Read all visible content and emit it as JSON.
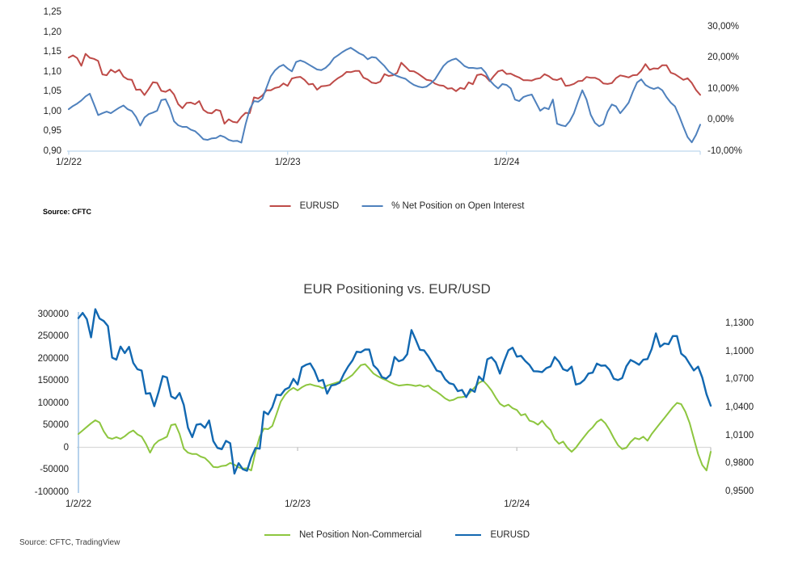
{
  "page": {
    "background": "#ffffff"
  },
  "top_chart": {
    "source": "Source: CFTC",
    "left_ticks": [
      "1,25",
      "1,20",
      "1,15",
      "1,10",
      "1,05",
      "1,00",
      "0,95",
      "0,90"
    ],
    "right_ticks": [
      "30,00%",
      "20,00%",
      "10,00%",
      "0,00%",
      "-10,00%"
    ],
    "x_ticks": [
      "1/2/22",
      "1/2/23",
      "1/2/24"
    ],
    "legend": [
      {
        "label": "EURUSD",
        "color": "#BE4B48"
      },
      {
        "label": "% Net Position on Open Interest",
        "color": "#4F81BD"
      }
    ],
    "axis_line_color": "#BDD7EE"
  },
  "bottom_chart": {
    "title": "EUR Positioning vs. EUR/USD",
    "source": "Source: CFTC, TradingView",
    "left_ticks": [
      "300000",
      "250000",
      "200000",
      "150000",
      "100000",
      "50000",
      "0",
      "-50000",
      "-100000"
    ],
    "right_ticks": [
      "1,1300",
      "1,1000",
      "1,0700",
      "1,0400",
      "1,0100",
      "0,9800",
      "0,9500"
    ],
    "x_ticks": [
      "1/2/22",
      "1/2/23",
      "1/2/24"
    ],
    "legend": [
      {
        "label": "Net Position Non-Commercial",
        "color": "#8DC63F"
      },
      {
        "label": "EURUSD",
        "color": "#1268B1"
      }
    ],
    "zero_line_color": "#D9D9D9",
    "axis_line_color": "#9DC3E6"
  },
  "chart_data": [
    {
      "type": "line",
      "title": "",
      "x_unit": "weekly observations starting 1/2/22",
      "x_tick_weeks": [
        0,
        52,
        104
      ],
      "x_tick_labels": [
        "1/2/22",
        "1/2/23",
        "1/2/24"
      ],
      "left_axis": {
        "min": 0.9,
        "max": 1.25,
        "step": 0.05,
        "format": "comma-decimal"
      },
      "right_axis": {
        "min": -10,
        "max": 30,
        "step": 10,
        "format": "percent comma-decimal"
      },
      "legend_position": "bottom center",
      "grid": "bottom axis line only",
      "series": [
        {
          "name": "EURUSD",
          "axis": "left",
          "color": "#BE4B48",
          "values": [
            1.1355,
            1.1411,
            1.1344,
            1.1149,
            1.1451,
            1.1351,
            1.1324,
            1.127,
            1.0932,
            1.0911,
            1.1051,
            1.0981,
            1.1047,
            1.0876,
            1.0808,
            1.0794,
            1.0545,
            1.0552,
            1.0412,
            1.0563,
            1.0734,
            1.072,
            1.0518,
            1.0493,
            1.0553,
            1.0426,
            1.0182,
            1.0081,
            1.0213,
            1.0222,
            1.0181,
            1.0259,
            1.0039,
            0.9966,
            0.9952,
            1.0041,
            1.0016,
            0.969,
            0.9802,
            0.9737,
            0.9721,
            0.9861,
            0.9965,
            0.9957,
            1.0354,
            1.0325,
            1.0402,
            1.0535,
            1.053,
            1.059,
            1.0613,
            1.0705,
            1.0644,
            1.083,
            1.0855,
            1.087,
            1.0794,
            1.0679,
            1.0694,
            1.0546,
            1.0634,
            1.0643,
            1.0665,
            1.076,
            1.0839,
            1.0901,
            1.0995,
            1.0989,
            1.1019,
            1.1019,
            1.085,
            1.0805,
            1.0724,
            1.0707,
            1.0749,
            1.0939,
            1.0893,
            1.091,
            1.0968,
            1.1227,
            1.1125,
            1.1016,
            1.1009,
            1.0947,
            1.0872,
            1.0794,
            1.0779,
            1.07,
            1.0658,
            1.0646,
            1.0573,
            1.0586,
            1.0509,
            1.0594,
            1.0565,
            1.0731,
            1.0685,
            1.0914,
            1.0936,
            1.0882,
            1.0761,
            1.0895,
            1.1011,
            1.1039,
            1.0943,
            1.0951,
            1.0897,
            1.0854,
            1.0787,
            1.0784,
            1.0777,
            1.082,
            1.0838,
            1.0938,
            1.0889,
            1.0808,
            1.079,
            1.0836,
            1.0644,
            1.0656,
            1.0693,
            1.0762,
            1.0771,
            1.0868,
            1.0846,
            1.0848,
            1.0801,
            1.0706,
            1.0692,
            1.0713,
            1.084,
            1.0907,
            1.0884,
            1.0856,
            1.091,
            1.0917,
            1.1025,
            1.1192,
            1.1048,
            1.1084,
            1.1076,
            1.1163,
            1.1163,
            1.0975,
            1.0937,
            1.0866,
            1.0795,
            1.0836,
            1.0718,
            1.054,
            1.0417
          ]
        },
        {
          "name": "% Net Position on Open Interest",
          "axis": "right",
          "color": "#4F81BD",
          "values": [
            3.4,
            4.4,
            5.2,
            6.2,
            7.5,
            8.4,
            5.0,
            1.5,
            2.1,
            2.6,
            2.1,
            3.0,
            3.9,
            4.6,
            3.4,
            2.8,
            0.9,
            -1.9,
            0.7,
            1.8,
            2.3,
            2.9,
            6.3,
            6.6,
            3.7,
            -0.5,
            -1.8,
            -2.3,
            -2.3,
            -3.2,
            -3.7,
            -4.9,
            -6.3,
            -6.5,
            -6.0,
            -5.9,
            -5.1,
            -5.6,
            -6.5,
            -6.9,
            -6.8,
            -7.4,
            -1.5,
            3.4,
            6.0,
            5.8,
            6.8,
            10.4,
            14.0,
            15.9,
            17.1,
            17.7,
            16.5,
            15.6,
            18.6,
            19.1,
            18.6,
            17.8,
            17.0,
            16.2,
            16.0,
            16.7,
            18.0,
            19.9,
            20.8,
            21.8,
            22.6,
            23.2,
            22.3,
            21.4,
            20.8,
            19.5,
            20.2,
            20.0,
            18.6,
            17.3,
            15.6,
            14.7,
            14.1,
            13.6,
            13.2,
            12.1,
            11.2,
            10.7,
            10.4,
            10.7,
            11.7,
            13.0,
            15.2,
            17.3,
            18.6,
            19.3,
            19.7,
            18.6,
            17.3,
            16.7,
            16.7,
            16.5,
            16.7,
            15.2,
            12.7,
            11.2,
            10.1,
            11.5,
            11.2,
            10.1,
            6.5,
            6.0,
            7.3,
            7.8,
            8.1,
            5.5,
            2.9,
            3.9,
            3.4,
            6.5,
            -1.3,
            -1.8,
            -2.1,
            -0.5,
            2.1,
            6.0,
            9.5,
            6.5,
            1.6,
            -1.0,
            -2.1,
            -1.4,
            2.6,
            4.9,
            4.3,
            2.1,
            3.7,
            5.5,
            9.0,
            12.0,
            13.0,
            11.2,
            10.4,
            9.9,
            10.4,
            9.5,
            7.3,
            5.5,
            4.3,
            1.2,
            -2.3,
            -5.6,
            -7.3,
            -4.9,
            -1.6
          ]
        }
      ]
    },
    {
      "type": "line",
      "title": "EUR Positioning vs. EUR/USD",
      "x_unit": "weekly observations starting 1/2/22",
      "x_tick_weeks": [
        0,
        52,
        104
      ],
      "x_tick_labels": [
        "1/2/22",
        "1/2/23",
        "1/2/24"
      ],
      "left_axis": {
        "min": -100000,
        "max": 300000,
        "step": 50000
      },
      "right_axis": {
        "min": 0.95,
        "max": 1.13,
        "step": 0.03,
        "format": "comma-decimal"
      },
      "legend_position": "bottom center",
      "grid": "zero line only",
      "series": [
        {
          "name": "Net Position Non-Commercial",
          "axis": "left",
          "color": "#8DC63F",
          "values": [
            30000,
            38000,
            46000,
            54000,
            61000,
            56000,
            36000,
            22000,
            19000,
            23000,
            19000,
            25000,
            33000,
            38000,
            29000,
            24000,
            8000,
            -12000,
            6000,
            15000,
            19000,
            24000,
            50000,
            52000,
            30000,
            -3000,
            -12000,
            -15000,
            -15000,
            -21000,
            -24000,
            -33000,
            -44000,
            -45000,
            -42000,
            -41000,
            -35000,
            -39000,
            -45000,
            -48000,
            -47000,
            -52000,
            -10000,
            24000,
            42000,
            41000,
            48000,
            75000,
            103000,
            118000,
            128000,
            134000,
            128000,
            135000,
            140000,
            142000,
            139000,
            137000,
            133000,
            139000,
            142000,
            145000,
            148000,
            150000,
            156000,
            163000,
            174000,
            185000,
            187000,
            177000,
            166000,
            160000,
            155000,
            151000,
            146000,
            142000,
            139000,
            140000,
            141000,
            140000,
            138000,
            140000,
            136000,
            139000,
            130000,
            125000,
            118000,
            110000,
            105000,
            107000,
            112000,
            113000,
            115000,
            125000,
            135000,
            145000,
            150000,
            140000,
            128000,
            112000,
            98000,
            92000,
            96000,
            88000,
            84000,
            72000,
            75000,
            60000,
            57000,
            51000,
            60000,
            48000,
            39000,
            18000,
            8000,
            13000,
            -1000,
            -10000,
            -1000,
            12000,
            24000,
            36000,
            45000,
            57000,
            63000,
            54000,
            39000,
            21000,
            5000,
            -4000,
            -1000,
            12000,
            21000,
            18000,
            24000,
            15000,
            30000,
            42000,
            54000,
            66000,
            78000,
            90000,
            100000,
            97000,
            80000,
            55000,
            20000,
            -15000,
            -40000,
            -52000,
            -10000
          ]
        },
        {
          "name": "EURUSD",
          "axis": "right",
          "color": "#1268B1",
          "values": [
            1.1355,
            1.1411,
            1.1344,
            1.1149,
            1.1451,
            1.1351,
            1.1324,
            1.127,
            1.0932,
            1.0911,
            1.1051,
            1.0981,
            1.1047,
            1.0876,
            1.0808,
            1.0794,
            1.0545,
            1.0552,
            1.0412,
            1.0563,
            1.0734,
            1.072,
            1.0518,
            1.0493,
            1.0553,
            1.0426,
            1.0182,
            1.0081,
            1.0213,
            1.0222,
            1.0181,
            1.0259,
            1.0039,
            0.9966,
            0.9952,
            1.0041,
            1.0016,
            0.969,
            0.9802,
            0.9737,
            0.9721,
            0.9861,
            0.9965,
            0.9957,
            1.0354,
            1.0325,
            1.0402,
            1.0535,
            1.053,
            1.059,
            1.0613,
            1.0705,
            1.0644,
            1.083,
            1.0855,
            1.087,
            1.0794,
            1.0679,
            1.0694,
            1.0546,
            1.0634,
            1.0643,
            1.0665,
            1.076,
            1.0839,
            1.0901,
            1.0995,
            1.0989,
            1.1019,
            1.1019,
            1.085,
            1.0805,
            1.0724,
            1.0707,
            1.0749,
            1.0939,
            1.0893,
            1.091,
            1.0968,
            1.1227,
            1.1125,
            1.1016,
            1.1009,
            1.0947,
            1.0872,
            1.0794,
            1.0779,
            1.07,
            1.0658,
            1.0646,
            1.0573,
            1.0586,
            1.0509,
            1.0594,
            1.0565,
            1.0731,
            1.0685,
            1.0914,
            1.0936,
            1.0882,
            1.0761,
            1.0895,
            1.1011,
            1.1039,
            1.0943,
            1.0951,
            1.0897,
            1.0854,
            1.0787,
            1.0784,
            1.0777,
            1.082,
            1.0838,
            1.0938,
            1.0889,
            1.0808,
            1.079,
            1.0836,
            1.0644,
            1.0656,
            1.0693,
            1.0762,
            1.0771,
            1.0868,
            1.0846,
            1.0848,
            1.0801,
            1.0706,
            1.0692,
            1.0713,
            1.084,
            1.0907,
            1.0884,
            1.0856,
            1.091,
            1.0917,
            1.1025,
            1.1192,
            1.1048,
            1.1084,
            1.1076,
            1.1163,
            1.1163,
            1.0975,
            1.0937,
            1.0866,
            1.0795,
            1.0836,
            1.0718,
            1.054,
            1.0417
          ]
        }
      ]
    }
  ]
}
